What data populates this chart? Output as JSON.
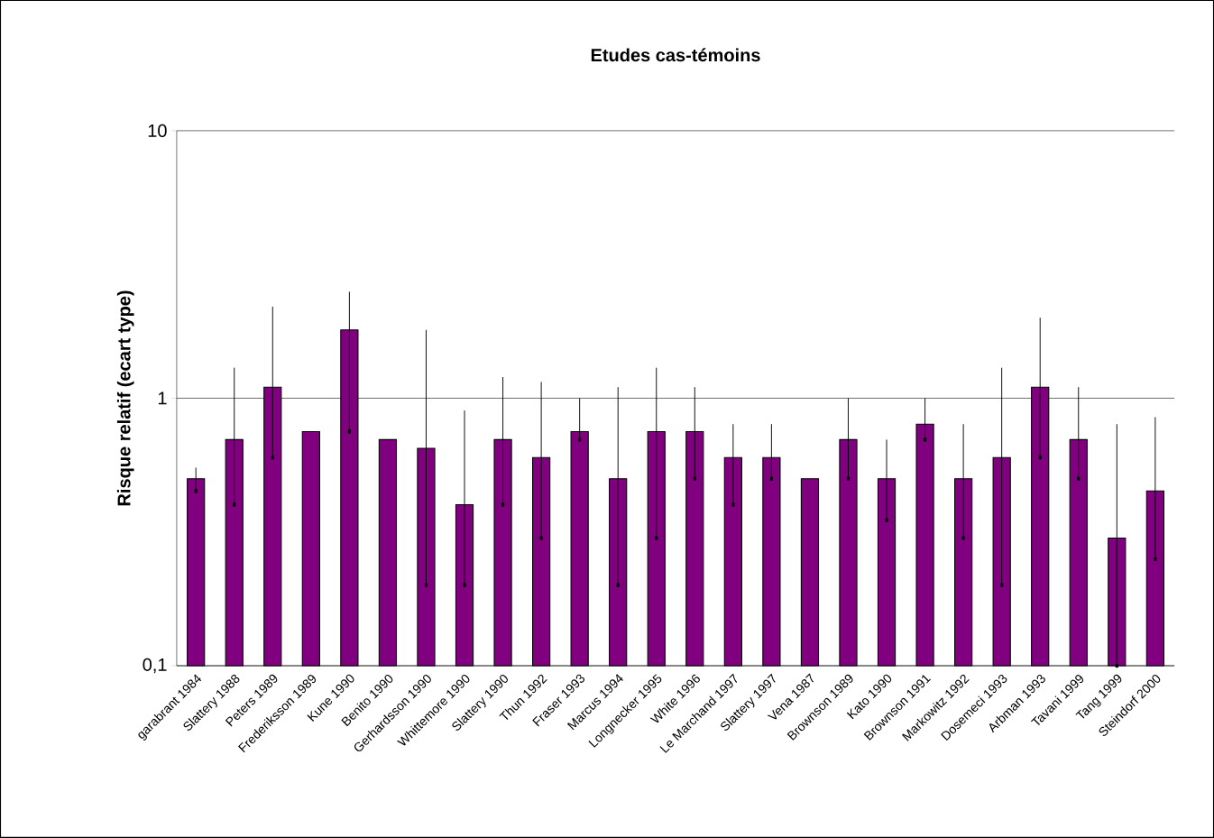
{
  "chart_data": {
    "type": "bar",
    "title": "Etudes cas-témoins",
    "ylabel": "Risque relatif (ecart type)",
    "categories": [
      "garabrant 1984",
      "Slattery 1988",
      "Peters 1989",
      "Frederiksson 1989",
      "Kune 1990",
      "Benito 1990",
      "Gerhardsson 1990",
      "Whittemore 1990",
      "Slattery 1990",
      "Thun 1992",
      "Fraser 1993",
      "Marcus 1994",
      "Longnecker 1995",
      "White 1996",
      "Le Marchand 1997",
      "Slattery 1997",
      "Vena 1987",
      "Brownson 1989",
      "Kato 1990",
      "Brownson 1991",
      "Markowitz 1992",
      "Dosemeci 1993",
      "Arbman 1993",
      "Tavani 1999",
      "Tang 1999",
      "Steindorf 2000"
    ],
    "values": [
      0.5,
      0.7,
      1.1,
      0.75,
      1.8,
      0.7,
      0.65,
      0.4,
      0.7,
      0.6,
      0.75,
      0.5,
      0.75,
      0.75,
      0.6,
      0.6,
      0.5,
      0.7,
      0.5,
      0.8,
      0.5,
      0.6,
      1.1,
      0.7,
      0.3,
      0.45
    ],
    "errors": [
      [
        0.45,
        0.55
      ],
      [
        0.4,
        1.3
      ],
      [
        0.6,
        2.2
      ],
      null,
      [
        0.75,
        2.5
      ],
      null,
      [
        0.2,
        1.8
      ],
      [
        0.2,
        0.9
      ],
      [
        0.4,
        1.2
      ],
      [
        0.3,
        1.15
      ],
      [
        0.7,
        1.0
      ],
      [
        0.2,
        1.1
      ],
      [
        0.3,
        1.3
      ],
      [
        0.5,
        1.1
      ],
      [
        0.4,
        0.8
      ],
      [
        0.5,
        0.8
      ],
      null,
      [
        0.5,
        1.0
      ],
      [
        0.35,
        0.7
      ],
      [
        0.7,
        1.0
      ],
      [
        0.3,
        0.8
      ],
      [
        0.2,
        1.3
      ],
      [
        0.6,
        2.0
      ],
      [
        0.5,
        1.1
      ],
      [
        0.1,
        0.8
      ],
      [
        0.25,
        0.85
      ]
    ],
    "color": "#800080",
    "log": "y",
    "ylim": [
      0.1,
      10
    ],
    "yticks": [
      {
        "value": 0.1,
        "label": "0,1"
      },
      1,
      10
    ],
    "grid": "y"
  }
}
